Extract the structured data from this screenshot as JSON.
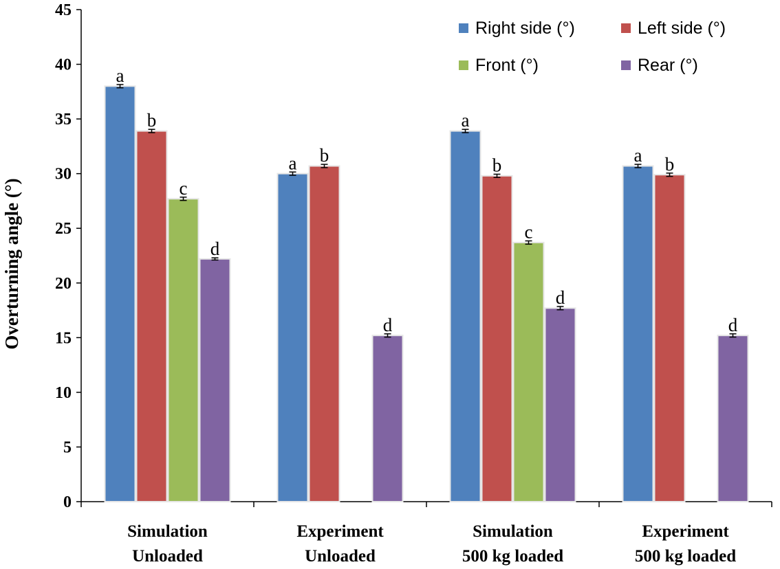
{
  "chart_data": {
    "type": "bar",
    "title": "",
    "xlabel": "",
    "ylabel": "Overturning angle (°)",
    "ylim": [
      0,
      45
    ],
    "yticks": [
      0,
      5,
      10,
      15,
      20,
      25,
      30,
      35,
      40,
      45
    ],
    "categories": [
      [
        "Simulation",
        "Unloaded"
      ],
      [
        "Experiment",
        "Unloaded"
      ],
      [
        "Simulation",
        "500 kg loaded"
      ],
      [
        "Experiment",
        "500 kg loaded"
      ]
    ],
    "legend_position": "top-right",
    "series": [
      {
        "name": "Right side (°)",
        "color": "#4F81BD",
        "values": [
          38.0,
          30.0,
          33.9,
          30.7
        ],
        "errors": [
          0.15,
          0.15,
          0.15,
          0.15
        ],
        "labels": [
          "a",
          "a",
          "a",
          "a"
        ]
      },
      {
        "name": "Left side (°)",
        "color": "#C0504D",
        "values": [
          33.9,
          30.7,
          29.8,
          29.9
        ],
        "errors": [
          0.15,
          0.15,
          0.15,
          0.15
        ],
        "labels": [
          "b",
          "b",
          "b",
          "b"
        ]
      },
      {
        "name": "Front (°)",
        "color": "#9BBB59",
        "values": [
          27.7,
          null,
          23.7,
          null
        ],
        "errors": [
          0.15,
          null,
          0.15,
          null
        ],
        "labels": [
          "c",
          "",
          "c",
          ""
        ]
      },
      {
        "name": "Rear (°)",
        "color": "#8064A2",
        "values": [
          22.2,
          15.2,
          17.7,
          15.2
        ],
        "errors": [
          0.1,
          0.15,
          0.15,
          0.15
        ],
        "labels": [
          "d",
          "d",
          "d",
          "d"
        ]
      }
    ]
  }
}
